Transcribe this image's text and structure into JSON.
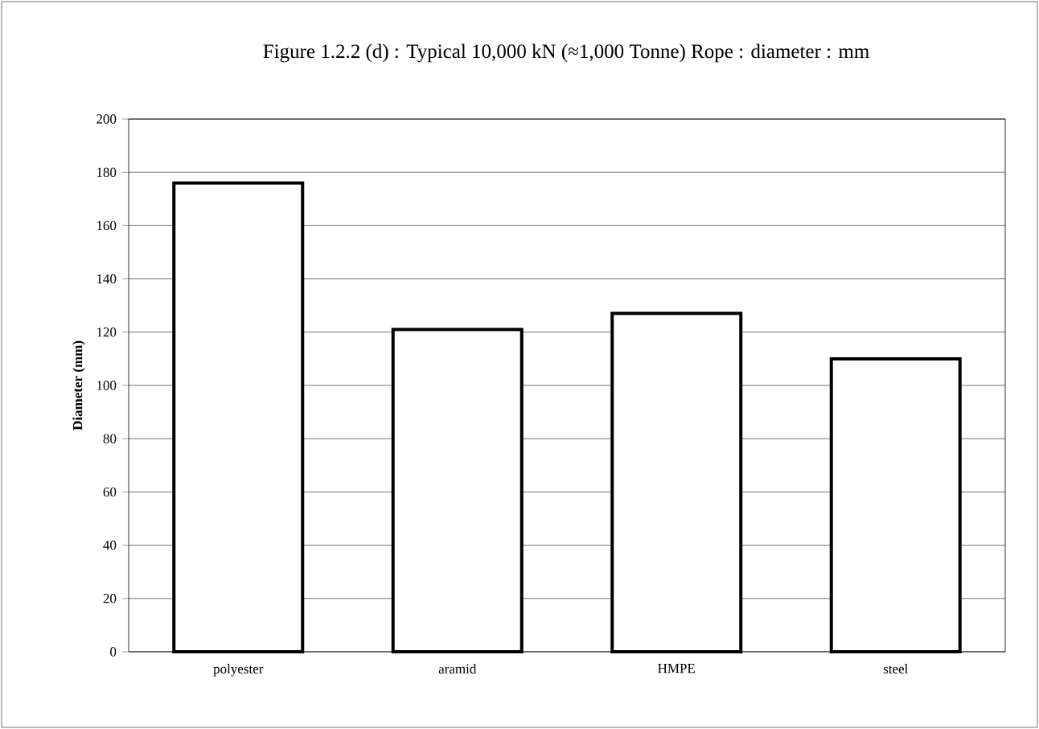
{
  "chart_data": {
    "type": "bar",
    "title": "Figure 1.2.2 (d) : Typical 10,000 kN (≈1,000 Tonne) Rope : diameter : mm",
    "ylabel": "Diameter (mm)",
    "categories": [
      "polyester",
      "aramid",
      "HMPE",
      "steel"
    ],
    "values": [
      176,
      121,
      127,
      110
    ],
    "color": "#ffffff",
    "ylim": [
      0,
      200
    ],
    "yticks": [
      0,
      20,
      40,
      60,
      80,
      100,
      120,
      140,
      160,
      180,
      200
    ],
    "grid": "y"
  }
}
